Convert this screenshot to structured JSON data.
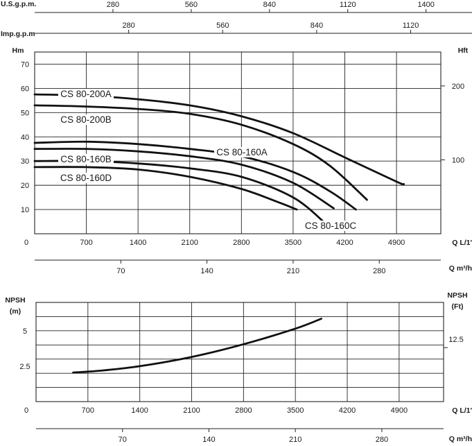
{
  "chart_data": [
    {
      "type": "line",
      "title": "",
      "xlabel": "Q L/1'",
      "ylabel": "Hm",
      "ylabel_right": "Hft",
      "xlim": [
        0,
        5500
      ],
      "ylim": [
        0,
        75
      ],
      "grid": true,
      "x_ticks": [
        0,
        700,
        1400,
        2100,
        2800,
        3500,
        4200,
        4900
      ],
      "x_tick_labels": [
        "0",
        "700",
        "1400",
        "2100",
        "2800",
        "3500",
        "4200",
        "4900"
      ],
      "y_ticks": [
        10,
        20,
        30,
        40,
        50,
        60,
        70
      ],
      "y_tick_labels": [
        "10",
        "20",
        "30",
        "40",
        "50",
        "60",
        "70"
      ],
      "right_ticks": [
        {
          "label": "200",
          "at_hm": 61
        },
        {
          "label": "100",
          "at_hm": 30.5
        }
      ],
      "top_axes": [
        {
          "unit": "U.S.g.p.m.",
          "ticks": [
            {
              "label": "280",
              "q": 1060
            },
            {
              "label": "560",
              "q": 2120
            },
            {
              "label": "840",
              "q": 3180
            },
            {
              "label": "1120",
              "q": 4240
            },
            {
              "label": "1400",
              "q": 5300
            }
          ]
        },
        {
          "unit": "Imp.g.p.m",
          "ticks": [
            {
              "label": "280",
              "q": 1273
            },
            {
              "label": "560",
              "q": 2546
            },
            {
              "label": "840",
              "q": 3819
            },
            {
              "label": "1120",
              "q": 5092
            }
          ]
        }
      ],
      "bottom_axis": {
        "unit": "Q m³/h",
        "ticks": [
          {
            "label": "70",
            "q": 1167
          },
          {
            "label": "140",
            "q": 2333
          },
          {
            "label": "210",
            "q": 3500
          },
          {
            "label": "280",
            "q": 4667
          }
        ]
      },
      "series": [
        {
          "name": "CS 80-200A",
          "x": [
            0,
            700,
            1400,
            2100,
            2800,
            3500,
            4200,
            4900,
            5000
          ],
          "y": [
            57.5,
            57,
            55.5,
            53,
            48.5,
            41.5,
            31.5,
            21.5,
            20.5
          ]
        },
        {
          "name": "CS 80-200B",
          "x": [
            0,
            700,
            1400,
            2100,
            2800,
            3500,
            4000,
            4500
          ],
          "y": [
            53,
            52.5,
            51.5,
            49.5,
            45,
            37,
            28,
            14
          ]
        },
        {
          "name": "CS 80-160A",
          "x": [
            0,
            700,
            1400,
            2100,
            2800,
            3500,
            4000,
            4350
          ],
          "y": [
            37.5,
            38,
            37,
            35,
            32,
            25.5,
            17.5,
            10
          ]
        },
        {
          "name": "CS 80-160B",
          "x": [
            0,
            700,
            1400,
            2100,
            2800,
            3500,
            4050
          ],
          "y": [
            35,
            35,
            34,
            32,
            28.5,
            21,
            10.5
          ]
        },
        {
          "name": "CS 80-160C",
          "x": [
            0,
            700,
            1400,
            2100,
            2800,
            3500,
            3930
          ],
          "y": [
            30,
            30,
            29,
            27,
            23.5,
            15,
            4.5
          ]
        },
        {
          "name": "CS 80-160D",
          "x": [
            0,
            700,
            1400,
            2100,
            2800,
            3300,
            3550
          ],
          "y": [
            27.5,
            27.5,
            26.5,
            23.5,
            18.5,
            13,
            10
          ]
        }
      ]
    },
    {
      "type": "line",
      "title": "",
      "ylabel": "NPSH (m)",
      "ylabel_right": "NPSH (Ft)",
      "xlabel": "Q L/1'",
      "xlim": [
        0,
        5500
      ],
      "ylim": [
        0,
        7
      ],
      "grid": true,
      "x_ticks": [
        0,
        700,
        1400,
        2100,
        2800,
        3500,
        4200,
        4900
      ],
      "x_tick_labels": [
        "0",
        "700",
        "1400",
        "2100",
        "2800",
        "3500",
        "4200",
        "4900"
      ],
      "y_ticks": [
        2.5,
        5
      ],
      "y_tick_labels": [
        "2.5",
        "5"
      ],
      "right_ticks": [
        {
          "label": "12.5",
          "at_m": 3.81
        }
      ],
      "bottom_axis": {
        "unit": "Q m³/h",
        "ticks": [
          {
            "label": "70",
            "q": 1167
          },
          {
            "label": "140",
            "q": 2333
          },
          {
            "label": "210",
            "q": 3500
          },
          {
            "label": "280",
            "q": 4667
          }
        ]
      },
      "series": [
        {
          "name": "NPSH",
          "x": [
            500,
            900,
            1400,
            2100,
            2800,
            3500,
            3850
          ],
          "y": [
            2.05,
            2.2,
            2.5,
            3.15,
            4.05,
            5.15,
            5.85
          ]
        }
      ]
    }
  ]
}
